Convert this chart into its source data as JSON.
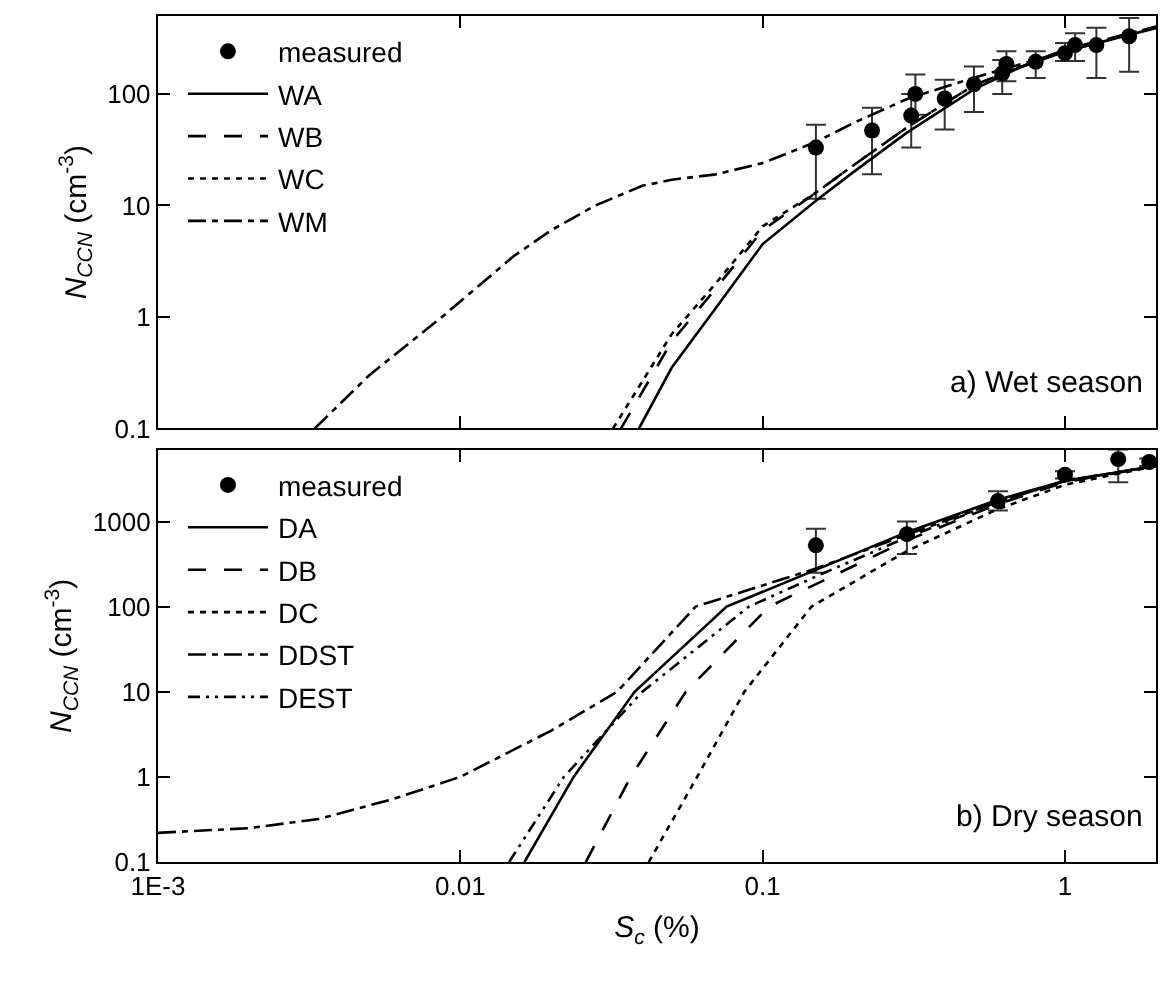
{
  "chart_data": [
    {
      "type": "line",
      "log": "xy",
      "xlim": [
        0.001,
        2
      ],
      "ylim": [
        0.1,
        500
      ],
      "xticks": [
        {
          "value": 0.01,
          "label": null
        },
        {
          "value": 0.1,
          "label": null
        },
        {
          "value": 1,
          "label": null
        }
      ],
      "yticks": [
        0.1,
        1,
        10,
        100
      ],
      "ylabel": "N$_{CCN}$ (cm$^{-3}$)",
      "tick_labels": "y",
      "legend": "top left",
      "grid": false,
      "annotations": [
        "a) Wet season"
      ],
      "series": [
        {
          "name": "measured",
          "type": "scatter",
          "marker": "circle",
          "color": "#000000",
          "x": [
            0.15,
            0.23,
            0.31,
            0.32,
            0.4,
            0.5,
            0.62,
            0.64,
            0.8,
            1.0,
            1.08,
            1.27,
            1.63
          ],
          "values": [
            33,
            47,
            64,
            100,
            91,
            122,
            153,
            186,
            194,
            232,
            274,
            274,
            329
          ],
          "errors": [
            [
              11.5,
              53
            ],
            [
              19,
              75
            ],
            [
              33,
              100
            ],
            [
              65,
              149
            ],
            [
              48,
              134
            ],
            [
              69,
              176
            ],
            [
              100,
              202
            ],
            [
              130,
              242
            ],
            [
              139,
              242
            ],
            [
              197,
              286
            ],
            [
              197,
              351
            ],
            [
              139,
              393
            ],
            [
              158,
              479
            ]
          ]
        },
        {
          "name": "WA",
          "line_style": "solid",
          "color": "#000000",
          "x": [
            0.039,
            0.05,
            0.07,
            0.1,
            0.15,
            0.2,
            0.3,
            0.5,
            0.7,
            1,
            1.5,
            2
          ],
          "values": [
            0.1,
            0.35,
            1.2,
            4.5,
            11,
            20,
            45,
            110,
            170,
            240,
            320,
            390
          ]
        },
        {
          "name": "WB",
          "line_style": "dashed",
          "color": "#000000",
          "x": [
            0.034,
            0.05,
            0.07,
            0.1,
            0.15,
            0.2,
            0.3,
            0.5,
            1,
            2
          ],
          "values": [
            0.1,
            0.6,
            1.8,
            6,
            13,
            23,
            50,
            120,
            250,
            400
          ]
        },
        {
          "name": "WC",
          "line_style": "dotted",
          "color": "#000000",
          "x": [
            0.032,
            0.05,
            0.07,
            0.1,
            0.15,
            0.2,
            0.3,
            0.5,
            1,
            2
          ],
          "values": [
            0.1,
            0.7,
            2,
            6.5,
            13,
            23,
            50,
            120,
            250,
            400
          ]
        },
        {
          "name": "WM",
          "line_style": "dashdot",
          "color": "#000000",
          "x": [
            0.0033,
            0.005,
            0.0087,
            0.015,
            0.02,
            0.028,
            0.04,
            0.05,
            0.07,
            0.1,
            0.15,
            0.2,
            0.3,
            0.5,
            1,
            2
          ],
          "values": [
            0.1,
            0.3,
            1,
            3.5,
            6,
            10,
            15,
            17,
            19,
            24,
            37,
            55,
            90,
            140,
            240,
            400
          ]
        }
      ]
    },
    {
      "type": "line",
      "log": "xy",
      "xlim": [
        0.001,
        2
      ],
      "ylim": [
        0.1,
        7000
      ],
      "xticks": [
        {
          "value": 0.001,
          "label": "1E-3"
        },
        0.01,
        0.1,
        1
      ],
      "yticks": [
        0.1,
        1,
        10,
        100,
        1000
      ],
      "xlabel": "S$_{c}$ (%)",
      "ylabel": "N$_{CCN}$ (cm$^{-3}$)",
      "legend": "top left",
      "grid": false,
      "annotations": [
        "b) Dry season"
      ],
      "series": [
        {
          "name": "measured",
          "type": "scatter",
          "marker": "circle",
          "color": "#000000",
          "x": [
            0.15,
            0.3,
            0.6,
            1.0,
            1.5,
            1.9
          ],
          "values": [
            525,
            710,
            1740,
            3550,
            5400,
            5000
          ],
          "errors": [
            [
              250,
              820
            ],
            [
              415,
              1000
            ],
            [
              1350,
              2270
            ],
            [
              3200,
              3900
            ],
            [
              2900,
              7000
            ],
            [
              4500,
              5500
            ]
          ]
        },
        {
          "name": "DA",
          "line_style": "solid",
          "color": "#000000",
          "x": [
            0.0163,
            0.0237,
            0.0377,
            0.076,
            0.15,
            0.3,
            0.6,
            1,
            2
          ],
          "values": [
            0.1,
            1,
            10,
            100,
            270,
            750,
            1800,
            3000,
            4500
          ]
        },
        {
          "name": "DB",
          "line_style": "dashed",
          "color": "#000000",
          "x": [
            0.026,
            0.0366,
            0.0557,
            0.105,
            0.3,
            0.6,
            1,
            2
          ],
          "values": [
            0.1,
            1,
            10,
            100,
            600,
            1600,
            2900,
            4500
          ]
        },
        {
          "name": "DC",
          "line_style": "dotted",
          "color": "#000000",
          "x": [
            0.042,
            0.0607,
            0.087,
            0.145,
            0.3,
            0.6,
            1,
            2
          ],
          "values": [
            0.1,
            1,
            10,
            100,
            450,
            1400,
            2700,
            4500
          ]
        },
        {
          "name": "DDST",
          "line_style": "dashdot",
          "color": "#000000",
          "x": [
            0.001,
            0.002,
            0.0034,
            0.006,
            0.01,
            0.02,
            0.033,
            0.06,
            0.15,
            0.3,
            0.6,
            1,
            2
          ],
          "values": [
            0.22,
            0.25,
            0.32,
            0.55,
            1,
            3.5,
            10,
            100,
            280,
            700,
            1700,
            3000,
            4500
          ]
        },
        {
          "name": "DEST",
          "line_style": "dashdotdot",
          "color": "#000000",
          "x": [
            0.0145,
            0.022,
            0.04,
            0.09,
            0.16,
            0.3,
            0.6,
            1,
            2
          ],
          "values": [
            0.1,
            1,
            10,
            100,
            250,
            650,
            1700,
            3000,
            4500
          ]
        }
      ]
    }
  ]
}
